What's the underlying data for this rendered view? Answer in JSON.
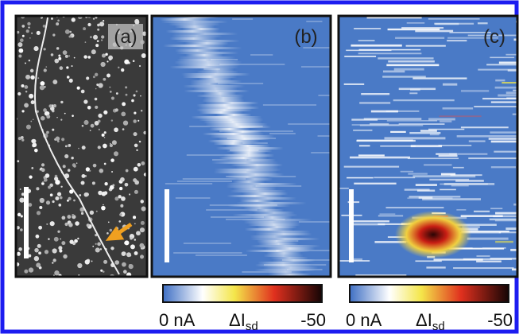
{
  "panels": [
    {
      "label": "(a)"
    },
    {
      "label": "(b)"
    },
    {
      "label": "(c)"
    }
  ],
  "colorbars": [
    {
      "min_label": "0 nA",
      "quantity": "ΔI",
      "subscript": "sd",
      "max_label": "-50"
    },
    {
      "min_label": "0 nA",
      "quantity": "ΔI",
      "subscript": "sd",
      "max_label": "-50"
    }
  ]
}
